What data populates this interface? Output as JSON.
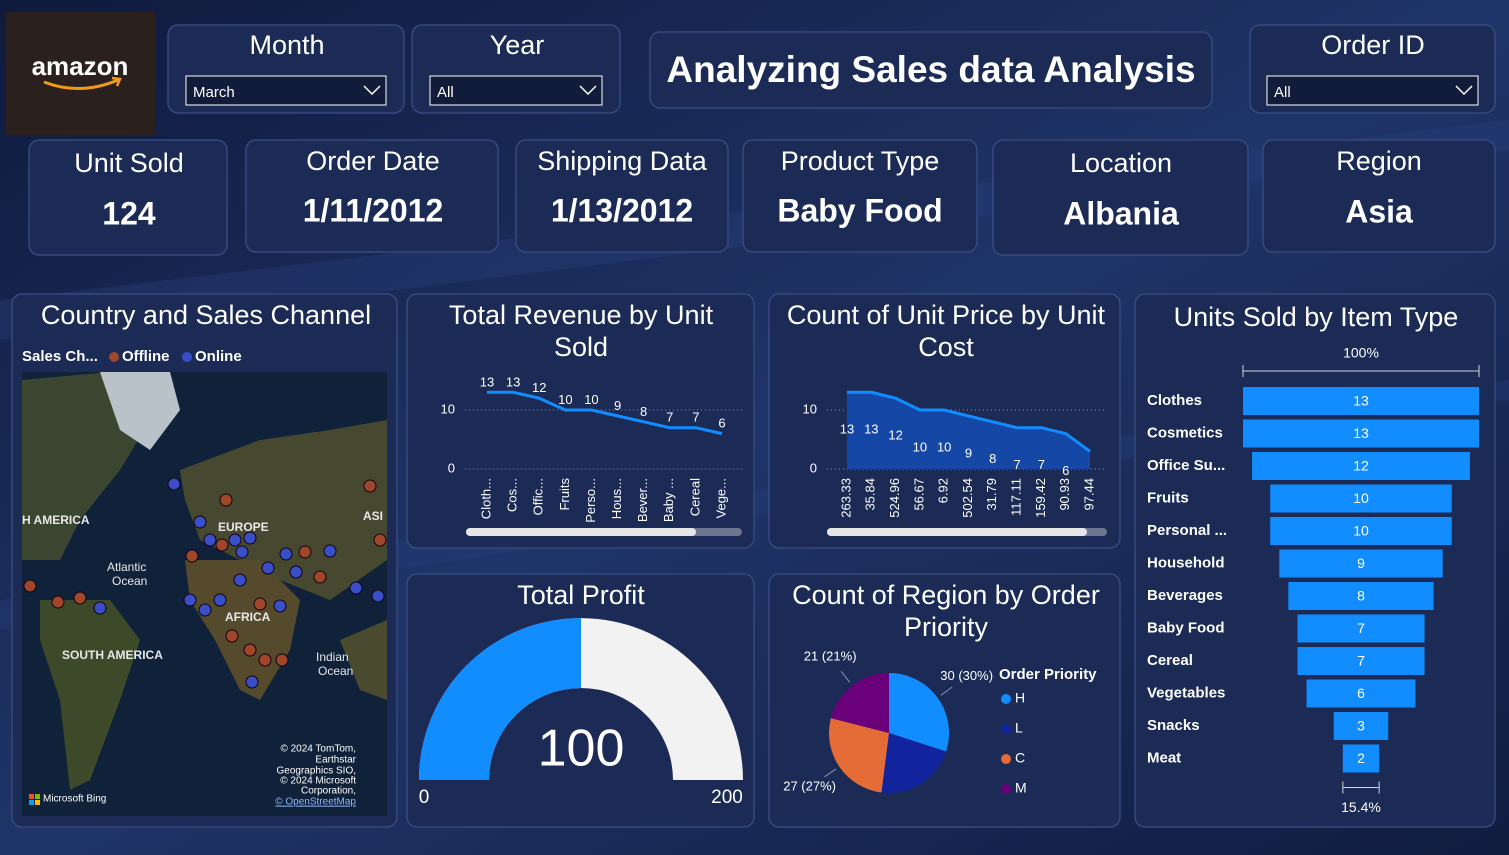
{
  "header": {
    "logo": "amazon",
    "title": "Analyzing Sales data Analysis",
    "filters": [
      {
        "label": "Month",
        "value": "March"
      },
      {
        "label": "Year",
        "value": "All"
      },
      {
        "label": "Order ID",
        "value": "All"
      }
    ]
  },
  "cards": [
    {
      "label": "Unit Sold",
      "value": 124
    },
    {
      "label": "Order Date",
      "value": "1/11/2012"
    },
    {
      "label": "Shipping Data",
      "value": "1/13/2012"
    },
    {
      "label": "Product Type",
      "value": "Baby Food"
    },
    {
      "label": "Location",
      "value": "Albania"
    },
    {
      "label": "Region",
      "value": "Asia"
    }
  ],
  "map": {
    "title": "Country and Sales Channel",
    "legend_title": "Sales Ch...",
    "legend": [
      {
        "name": "Offline",
        "color": "#a0462a"
      },
      {
        "name": "Online",
        "color": "#3a4ec8"
      }
    ],
    "labels": [
      "H AMERICA",
      "EUROPE",
      "ASI",
      "Atlantic",
      "Ocean",
      "AFRICA",
      "SOUTH AMERICA",
      "Indian",
      "Ocean"
    ],
    "attribution": [
      "© 2024 TomTom,",
      "Earthstar",
      "Geographics SIO,",
      "© 2024 Microsoft",
      "Corporation,",
      "© OpenStreetMap"
    ],
    "bing": "Microsoft Bing"
  },
  "chart_data": [
    {
      "type": "line",
      "title": [
        "Total Revenue by Unit",
        "Sold"
      ],
      "categories": [
        "Cloth...",
        "Cos...",
        "Offic...",
        "Fruits",
        "Perso...",
        "Hous...",
        "Bever...",
        "Baby ...",
        "Cereal",
        "Vege..."
      ],
      "values": [
        13,
        13,
        12,
        10,
        10,
        9,
        8,
        7,
        7,
        6
      ],
      "color": "#118dff",
      "ylim": [
        0,
        14
      ],
      "yticks": [
        0,
        10
      ],
      "grid": true
    },
    {
      "type": "area",
      "title": [
        "Count of Unit Price by Unit",
        "Cost"
      ],
      "categories": [
        "263.33",
        "35.84",
        "524.96",
        "56.67",
        "6.92",
        "502.54",
        "31.79",
        "117.11",
        "159.42",
        "90.93",
        "97.44"
      ],
      "values": [
        13,
        13,
        12,
        10,
        10,
        9,
        8,
        7,
        7,
        6,
        3
      ],
      "value_labels": [
        "13",
        "13",
        "12",
        "10",
        "10",
        "9",
        "8",
        "7",
        "7",
        "6",
        null
      ],
      "color": "#118dff",
      "fill": "#1547a6",
      "ylim": [
        0,
        14
      ],
      "yticks": [
        0,
        10
      ],
      "grid": true
    },
    {
      "type": "gauge",
      "title": "Total Profit",
      "value": 100,
      "min": 0,
      "max": 200,
      "color": "#118dff",
      "track": "#f2f2f2"
    },
    {
      "type": "pie",
      "title": [
        "Count of Region by Order",
        "Priority"
      ],
      "legend_title": "Order Priority",
      "categories": [
        "H",
        "L",
        "C",
        "M"
      ],
      "values": [
        30,
        22,
        27,
        21
      ],
      "value_labels": [
        "30 (30%)",
        null,
        "27 (27%)",
        "21 (21%)"
      ],
      "colors": [
        "#118dff",
        "#12239e",
        "#e66c37",
        "#6b007b"
      ]
    },
    {
      "type": "funnel",
      "title": "Units Sold by Item Type",
      "categories": [
        "Clothes",
        "Cosmetics",
        "Office Su...",
        "Fruits",
        "Personal ...",
        "Household",
        "Beverages",
        "Baby Food",
        "Cereal",
        "Vegetables",
        "Snacks",
        "Meat"
      ],
      "values": [
        13,
        13,
        12,
        10,
        10,
        9,
        8,
        7,
        7,
        6,
        3,
        2
      ],
      "color": "#118dff",
      "top_label": "100%",
      "bottom_label": "15.4%"
    }
  ]
}
